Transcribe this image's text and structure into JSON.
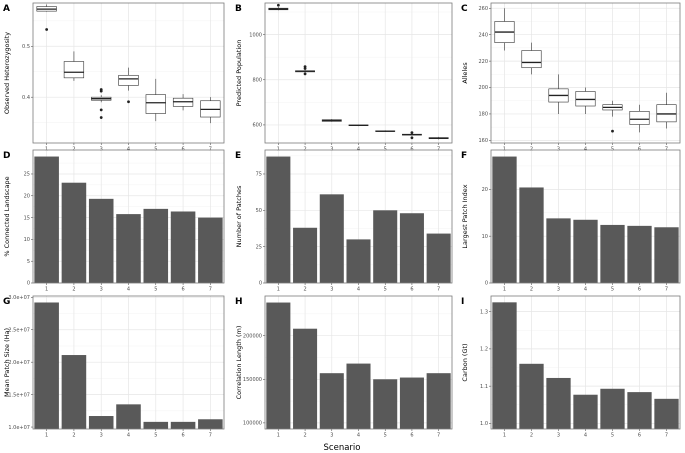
{
  "figure": {
    "xlabel": "Scenario"
  },
  "chart_data": [
    {
      "id": "A",
      "type": "box",
      "ylabel": "Observed Heterozygosity",
      "categories": [
        "1",
        "2",
        "3",
        "4",
        "5",
        "6",
        "7"
      ],
      "ylim": [
        0.31,
        0.585
      ],
      "yticks": [
        0.3,
        0.4,
        0.5
      ],
      "ytick_labels": [
        "0.3",
        "0.4",
        "0.5"
      ],
      "boxes": [
        {
          "whislo": 0.568,
          "q1": 0.569,
          "med": 0.573,
          "q3": 0.578,
          "whishi": 0.582,
          "outliers": [
            0.533
          ]
        },
        {
          "whislo": 0.432,
          "q1": 0.438,
          "med": 0.449,
          "q3": 0.47,
          "whishi": 0.49,
          "outliers": []
        },
        {
          "whislo": 0.39,
          "q1": 0.394,
          "med": 0.397,
          "q3": 0.4,
          "whishi": 0.404,
          "outliers": [
            0.415,
            0.412,
            0.375,
            0.36
          ]
        },
        {
          "whislo": 0.413,
          "q1": 0.423,
          "med": 0.436,
          "q3": 0.443,
          "whishi": 0.458,
          "outliers": [
            0.391
          ]
        },
        {
          "whislo": 0.353,
          "q1": 0.368,
          "med": 0.389,
          "q3": 0.405,
          "whishi": 0.436,
          "outliers": []
        },
        {
          "whislo": 0.374,
          "q1": 0.382,
          "med": 0.391,
          "q3": 0.398,
          "whishi": 0.406,
          "outliers": []
        },
        {
          "whislo": 0.349,
          "q1": 0.361,
          "med": 0.376,
          "q3": 0.393,
          "whishi": 0.4,
          "outliers": []
        }
      ]
    },
    {
      "id": "B",
      "type": "box",
      "ylabel": "Predicted Population",
      "categories": [
        "1",
        "2",
        "3",
        "4",
        "5",
        "6",
        "7"
      ],
      "ylim": [
        520,
        1140
      ],
      "yticks": [
        600,
        800,
        1000
      ],
      "ytick_labels": [
        "600",
        "800",
        "1000"
      ],
      "boxes": [
        {
          "whislo": 1108,
          "q1": 1110,
          "med": 1113,
          "q3": 1117,
          "whishi": 1122,
          "outliers": [
            1130
          ]
        },
        {
          "whislo": 833,
          "q1": 835,
          "med": 838,
          "q3": 840,
          "whishi": 843,
          "outliers": [
            858,
            850,
            826
          ]
        },
        {
          "whislo": 614,
          "q1": 616,
          "med": 620,
          "q3": 623,
          "whishi": 626,
          "outliers": []
        },
        {
          "whislo": 595,
          "q1": 597,
          "med": 598,
          "q3": 600,
          "whishi": 602,
          "outliers": []
        },
        {
          "whislo": 569,
          "q1": 571,
          "med": 572,
          "q3": 574,
          "whishi": 576,
          "outliers": []
        },
        {
          "whislo": 553,
          "q1": 555,
          "med": 557,
          "q3": 559,
          "whishi": 561,
          "outliers": [
            566,
            543
          ]
        },
        {
          "whislo": 536,
          "q1": 539,
          "med": 541,
          "q3": 544,
          "whishi": 547,
          "outliers": []
        }
      ]
    },
    {
      "id": "C",
      "type": "box",
      "ylabel": "Alleles",
      "categories": [
        "1",
        "2",
        "3",
        "4",
        "5",
        "6",
        "7"
      ],
      "ylim": [
        158,
        264
      ],
      "yticks": [
        160,
        180,
        200,
        220,
        240,
        260
      ],
      "ytick_labels": [
        "160",
        "180",
        "200",
        "220",
        "240",
        "260"
      ],
      "boxes": [
        {
          "whislo": 228,
          "q1": 234,
          "med": 242,
          "q3": 250,
          "whishi": 260,
          "outliers": []
        },
        {
          "whislo": 210,
          "q1": 215,
          "med": 219,
          "q3": 228,
          "whishi": 234,
          "outliers": []
        },
        {
          "whislo": 180,
          "q1": 189,
          "med": 194,
          "q3": 199,
          "whishi": 210,
          "outliers": []
        },
        {
          "whislo": 180,
          "q1": 186,
          "med": 191,
          "q3": 197,
          "whishi": 200,
          "outliers": []
        },
        {
          "whislo": 178,
          "q1": 183,
          "med": 185,
          "q3": 187,
          "whishi": 190,
          "outliers": [
            167
          ]
        },
        {
          "whislo": 166,
          "q1": 172,
          "med": 176,
          "q3": 182,
          "whishi": 187,
          "outliers": []
        },
        {
          "whislo": 169,
          "q1": 174,
          "med": 180,
          "q3": 187,
          "whishi": 196,
          "outliers": []
        }
      ]
    },
    {
      "id": "D",
      "type": "bar",
      "ylabel": "% Connected Landscape",
      "categories": [
        "1",
        "2",
        "3",
        "4",
        "5",
        "6",
        "7"
      ],
      "values": [
        29.0,
        23.0,
        19.3,
        15.8,
        17.0,
        16.4,
        15.0
      ],
      "ylim": [
        0,
        30.5
      ],
      "yticks": [
        0,
        5,
        10,
        15,
        20,
        25
      ],
      "ytick_labels": [
        "0",
        "5",
        "10",
        "15",
        "20",
        "25"
      ]
    },
    {
      "id": "E",
      "type": "bar",
      "ylabel": "Number of Patches",
      "categories": [
        "1",
        "2",
        "3",
        "4",
        "5",
        "6",
        "7"
      ],
      "values": [
        87,
        38,
        61,
        30,
        50,
        48,
        34
      ],
      "ylim": [
        0,
        91.5
      ],
      "yticks": [
        0,
        25,
        50,
        75
      ],
      "ytick_labels": [
        "0",
        "25",
        "50",
        "75"
      ]
    },
    {
      "id": "F",
      "type": "bar",
      "ylabel": "Largest Patch Index",
      "categories": [
        "1",
        "2",
        "3",
        "4",
        "5",
        "6",
        "7"
      ],
      "values": [
        27.0,
        20.4,
        13.8,
        13.5,
        12.4,
        12.2,
        11.9
      ],
      "ylim": [
        0,
        28.4
      ],
      "yticks": [
        0,
        10,
        20
      ],
      "ytick_labels": [
        "0",
        "10",
        "20"
      ]
    },
    {
      "id": "G",
      "type": "bar",
      "ylabel": "Mean Patch Size (Ha)",
      "categories": [
        "1",
        "2",
        "3",
        "4",
        "5",
        "6",
        "7"
      ],
      "values": [
        29200000,
        21100000,
        11700000,
        13500000,
        10800000,
        10800000,
        11200000
      ],
      "ylim": [
        9700000,
        30200000
      ],
      "yticks": [
        10000000,
        15000000,
        20000000,
        25000000,
        30000000
      ],
      "ytick_labels": [
        "1.0e+07",
        "1.5e+07",
        "2.0e+07",
        "2.5e+07",
        "3.0e+07"
      ]
    },
    {
      "id": "H",
      "type": "bar",
      "ylabel": "Correlation Length (m)",
      "categories": [
        "1",
        "2",
        "3",
        "4",
        "5",
        "6",
        "7"
      ],
      "values": [
        238000,
        208000,
        157000,
        168000,
        150000,
        152000,
        157000
      ],
      "ylim": [
        93000,
        245500
      ],
      "yticks": [
        100000,
        150000,
        200000
      ],
      "ytick_labels": [
        "100000",
        "150000",
        "200000"
      ]
    },
    {
      "id": "I",
      "type": "bar",
      "ylabel": "Carbon (Gt)",
      "categories": [
        "1",
        "2",
        "3",
        "4",
        "5",
        "6",
        "7"
      ],
      "values": [
        1.325,
        1.16,
        1.122,
        1.077,
        1.093,
        1.084,
        1.066
      ],
      "ylim": [
        0.985,
        1.342
      ],
      "yticks": [
        1.0,
        1.1,
        1.2,
        1.3
      ],
      "ytick_labels": [
        "1.0",
        "1.1",
        "1.2",
        "1.3"
      ]
    }
  ]
}
